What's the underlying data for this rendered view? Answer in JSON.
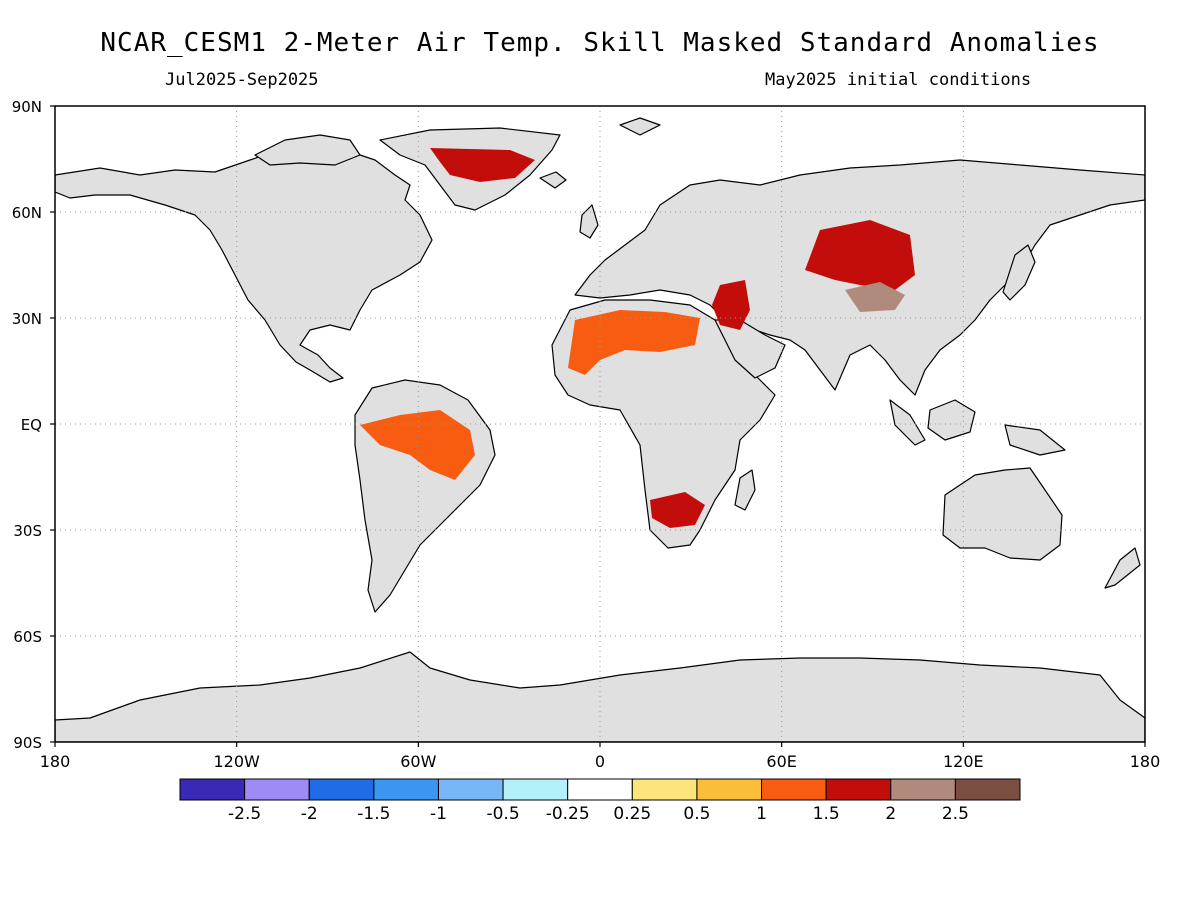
{
  "title": "NCAR_CESM1 2-Meter Air Temp. Skill Masked Standard Anomalies",
  "subtitle_left": "Jul2025-Sep2025",
  "subtitle_right": "May2025 initial conditions",
  "map": {
    "lat_ticks": [
      "90N",
      "60N",
      "30N",
      "EQ",
      "30S",
      "60S",
      "90S"
    ],
    "lon_ticks": [
      "180",
      "120W",
      "60W",
      "0",
      "60E",
      "120E",
      "180"
    ],
    "land_color": "#e0e0e0",
    "coast_color": "#000000",
    "grid": "dotted"
  },
  "colorbar": {
    "colors": [
      "#3a28b6",
      "#9f8bf5",
      "#1f6ce6",
      "#3a96f0",
      "#78b7f7",
      "#b4f0fa",
      "#ffffff",
      "#fde57c",
      "#fbbd3a",
      "#f85c10",
      "#c30d0a",
      "#b18a7e",
      "#7a4f42"
    ],
    "labels": [
      "-2.5",
      "-2",
      "-1.5",
      "-1",
      "-0.5",
      "-0.25",
      "0.25",
      "0.5",
      "1",
      "1.5",
      "2",
      "2.5"
    ]
  },
  "regions": [
    {
      "name": "greenland-anomaly",
      "color": "#c30d0a"
    },
    {
      "name": "north-africa-anomaly",
      "color": "#f85c10"
    },
    {
      "name": "central-asia-anomaly",
      "color": "#c30d0a"
    },
    {
      "name": "tibet-anomaly",
      "color": "#b18a7e"
    },
    {
      "name": "amazon-anomaly",
      "color": "#f85c10"
    },
    {
      "name": "southern-africa-anomaly",
      "color": "#c30d0a"
    },
    {
      "name": "middle-east-anomaly",
      "color": "#c30d0a"
    }
  ]
}
